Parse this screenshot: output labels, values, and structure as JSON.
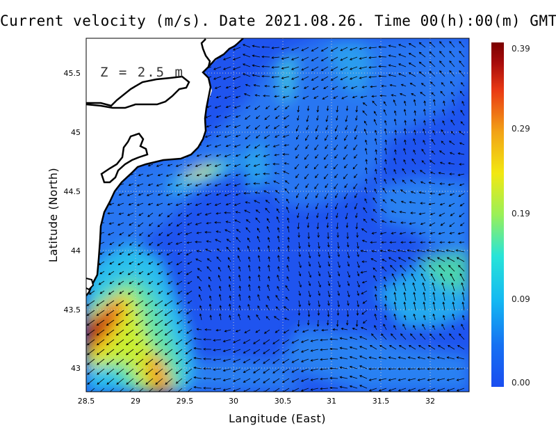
{
  "title": "Current velocity (m/s). Date 2021.08.26. Time 00(h):00(m) GMT",
  "depth_label": "Z = 2.5 m",
  "x_axis": {
    "label": "Langitude (East)",
    "ticks": [
      "28.5",
      "29",
      "29.5",
      "30",
      "30.5",
      "31",
      "31.5",
      "32"
    ],
    "tick_values": [
      28.5,
      29,
      29.5,
      30,
      30.5,
      31,
      31.5,
      32
    ],
    "range": [
      28.5,
      32.4
    ]
  },
  "y_axis": {
    "label": "Latitude (North)",
    "ticks": [
      "43",
      "43.5",
      "44",
      "44.5",
      "45",
      "45.5"
    ],
    "tick_values": [
      43,
      43.5,
      44,
      44.5,
      45,
      45.5
    ],
    "range": [
      42.8,
      45.8
    ]
  },
  "colorbar": {
    "ticks": [
      "0.39",
      "0.29",
      "0.19",
      "0.09",
      "0.00"
    ],
    "tick_values": [
      0.39,
      0.29,
      0.19,
      0.09,
      0.0
    ],
    "range": [
      0.0,
      0.39
    ],
    "colors": [
      "#1a4df0",
      "#1570f2",
      "#14b8f2",
      "#28e4d8",
      "#9af058",
      "#f2e812",
      "#f2a316",
      "#ea3a14",
      "#a80c0c",
      "#7a0000"
    ]
  },
  "colors": {
    "land": "#ffffff",
    "coastline": "#000000",
    "grid": "#bfbfbf",
    "arrow": "#000000",
    "background_sea": "#1f54ef"
  }
}
